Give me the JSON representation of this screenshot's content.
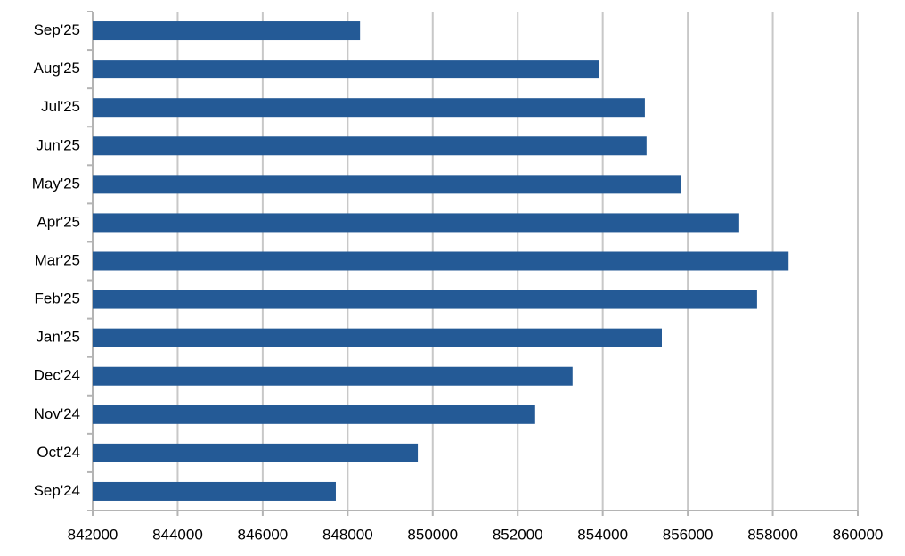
{
  "chart_data": {
    "type": "hbar",
    "categories": [
      "Sep'24",
      "Oct'24",
      "Nov'24",
      "Dec'24",
      "Jan'25",
      "Feb'25",
      "Mar'25",
      "Apr'25",
      "May'25",
      "Jun'25",
      "Jul'25",
      "Aug'25",
      "Sep'25"
    ],
    "values": [
      847720,
      849650,
      852410,
      853290,
      855390,
      857630,
      858370,
      857210,
      855830,
      855030,
      854990,
      853920,
      848290
    ],
    "color": "#245a96",
    "xlim": [
      842000,
      860000
    ],
    "xticks": [
      842000,
      844000,
      846000,
      848000,
      850000,
      852000,
      854000,
      856000,
      858000,
      860000
    ],
    "grid": true
  }
}
